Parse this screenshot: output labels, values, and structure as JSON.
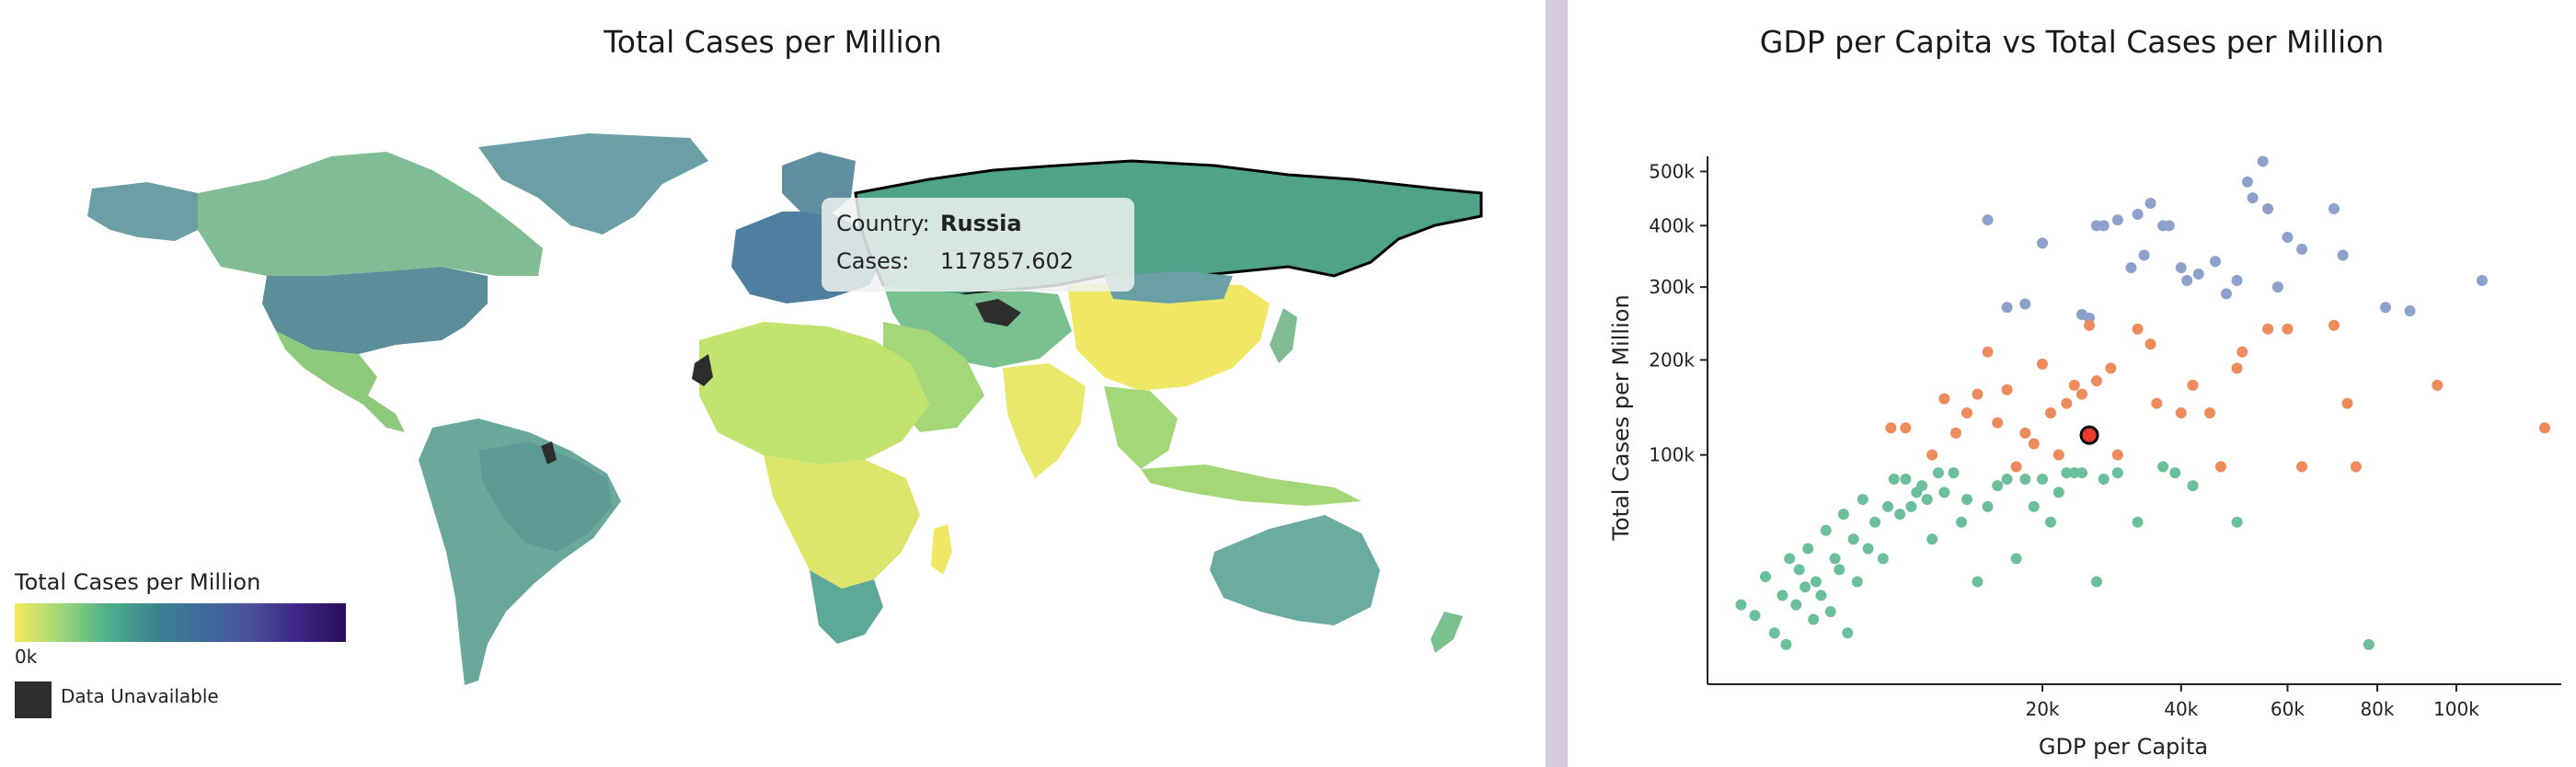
{
  "map_panel": {
    "title": "Total Cases per Million",
    "tooltip": {
      "country_label": "Country:",
      "country_value": "Russia",
      "cases_label": "Cases:",
      "cases_value": "117857.602"
    },
    "legend": {
      "title": "Total Cases per Million",
      "min_label": "0k",
      "na_label": "Data Unavailable",
      "na_color": "#2d2d2d"
    },
    "highlight_color": "#4fa388"
  },
  "scatter_panel": {
    "title": "GDP per Capita vs Total Cases per Million"
  },
  "chart_data": {
    "type": "scatter",
    "title": "GDP per Capita vs Total Cases per Million",
    "xlabel": "GDP per Capita",
    "ylabel": "Total Cases per Million",
    "x_ticks": [
      "20k",
      "40k",
      "60k",
      "80k",
      "100k"
    ],
    "y_ticks": [
      "100k",
      "200k",
      "300k",
      "400k",
      "500k"
    ],
    "xscale": "sqrt",
    "yscale": "sqrt",
    "series_colors": {
      "high": "#8ea0cc",
      "mid": "#ee8b5c",
      "low": "#6cbf9c"
    },
    "highlight": {
      "x": 26000,
      "y": 118000,
      "color": "#e8392b"
    },
    "series": [
      {
        "group": "high",
        "points": [
          [
            14000,
            410000
          ],
          [
            16000,
            270000
          ],
          [
            18000,
            275000
          ],
          [
            20000,
            370000
          ],
          [
            25000,
            260000
          ],
          [
            26000,
            255000
          ],
          [
            27000,
            400000
          ],
          [
            28000,
            400000
          ],
          [
            30000,
            410000
          ],
          [
            32000,
            330000
          ],
          [
            33000,
            420000
          ],
          [
            34000,
            350000
          ],
          [
            35000,
            440000
          ],
          [
            37000,
            400000
          ],
          [
            38000,
            400000
          ],
          [
            40000,
            330000
          ],
          [
            41000,
            310000
          ],
          [
            43000,
            320000
          ],
          [
            46000,
            340000
          ],
          [
            48000,
            290000
          ],
          [
            50000,
            310000
          ],
          [
            52000,
            480000
          ],
          [
            53000,
            450000
          ],
          [
            55000,
            520000
          ],
          [
            56000,
            430000
          ],
          [
            58000,
            300000
          ],
          [
            60000,
            380000
          ],
          [
            63000,
            360000
          ],
          [
            70000,
            430000
          ],
          [
            72000,
            350000
          ],
          [
            82000,
            270000
          ],
          [
            88000,
            265000
          ],
          [
            107000,
            310000
          ]
        ]
      },
      {
        "group": "mid",
        "points": [
          [
            6000,
            125000
          ],
          [
            7000,
            125000
          ],
          [
            9000,
            100000
          ],
          [
            10000,
            155000
          ],
          [
            11000,
            120000
          ],
          [
            12000,
            140000
          ],
          [
            13000,
            160000
          ],
          [
            14000,
            210000
          ],
          [
            15000,
            130000
          ],
          [
            16000,
            165000
          ],
          [
            17000,
            90000
          ],
          [
            18000,
            120000
          ],
          [
            19000,
            110000
          ],
          [
            20000,
            195000
          ],
          [
            21000,
            140000
          ],
          [
            22000,
            100000
          ],
          [
            23000,
            150000
          ],
          [
            24000,
            170000
          ],
          [
            25000,
            160000
          ],
          [
            26000,
            245000
          ],
          [
            27000,
            175000
          ],
          [
            29000,
            190000
          ],
          [
            30000,
            100000
          ],
          [
            33000,
            240000
          ],
          [
            35000,
            220000
          ],
          [
            36000,
            150000
          ],
          [
            40000,
            140000
          ],
          [
            42000,
            170000
          ],
          [
            45000,
            140000
          ],
          [
            47000,
            90000
          ],
          [
            50000,
            190000
          ],
          [
            51000,
            210000
          ],
          [
            56000,
            240000
          ],
          [
            60000,
            240000
          ],
          [
            63000,
            90000
          ],
          [
            70000,
            245000
          ],
          [
            73000,
            150000
          ],
          [
            75000,
            90000
          ],
          [
            95000,
            170000
          ],
          [
            125000,
            125000
          ]
        ]
      },
      {
        "group": "low",
        "points": [
          [
            200,
            12000
          ],
          [
            400,
            9000
          ],
          [
            600,
            22000
          ],
          [
            800,
            5000
          ],
          [
            1000,
            15000
          ],
          [
            1100,
            3000
          ],
          [
            1200,
            30000
          ],
          [
            1400,
            12000
          ],
          [
            1500,
            25000
          ],
          [
            1700,
            18000
          ],
          [
            1800,
            35000
          ],
          [
            2000,
            8000
          ],
          [
            2100,
            20000
          ],
          [
            2300,
            15000
          ],
          [
            2500,
            45000
          ],
          [
            2700,
            10000
          ],
          [
            2900,
            30000
          ],
          [
            3100,
            25000
          ],
          [
            3300,
            55000
          ],
          [
            3500,
            5000
          ],
          [
            3800,
            40000
          ],
          [
            4000,
            20000
          ],
          [
            4300,
            65000
          ],
          [
            4600,
            35000
          ],
          [
            5000,
            50000
          ],
          [
            5500,
            30000
          ],
          [
            5800,
            60000
          ],
          [
            6200,
            80000
          ],
          [
            6600,
            55000
          ],
          [
            7000,
            80000
          ],
          [
            7400,
            60000
          ],
          [
            7800,
            70000
          ],
          [
            8200,
            75000
          ],
          [
            8600,
            65000
          ],
          [
            9000,
            40000
          ],
          [
            9500,
            85000
          ],
          [
            10000,
            70000
          ],
          [
            10800,
            85000
          ],
          [
            11500,
            50000
          ],
          [
            12000,
            65000
          ],
          [
            13000,
            20000
          ],
          [
            14000,
            60000
          ],
          [
            15000,
            75000
          ],
          [
            16000,
            80000
          ],
          [
            17000,
            30000
          ],
          [
            18000,
            80000
          ],
          [
            19000,
            60000
          ],
          [
            20000,
            80000
          ],
          [
            21000,
            50000
          ],
          [
            22000,
            70000
          ],
          [
            23000,
            85000
          ],
          [
            24000,
            85000
          ],
          [
            25000,
            85000
          ],
          [
            27000,
            20000
          ],
          [
            28000,
            80000
          ],
          [
            30000,
            85000
          ],
          [
            33000,
            50000
          ],
          [
            37000,
            90000
          ],
          [
            39000,
            85000
          ],
          [
            42000,
            75000
          ],
          [
            50000,
            50000
          ],
          [
            78000,
            3000
          ]
        ]
      }
    ]
  }
}
